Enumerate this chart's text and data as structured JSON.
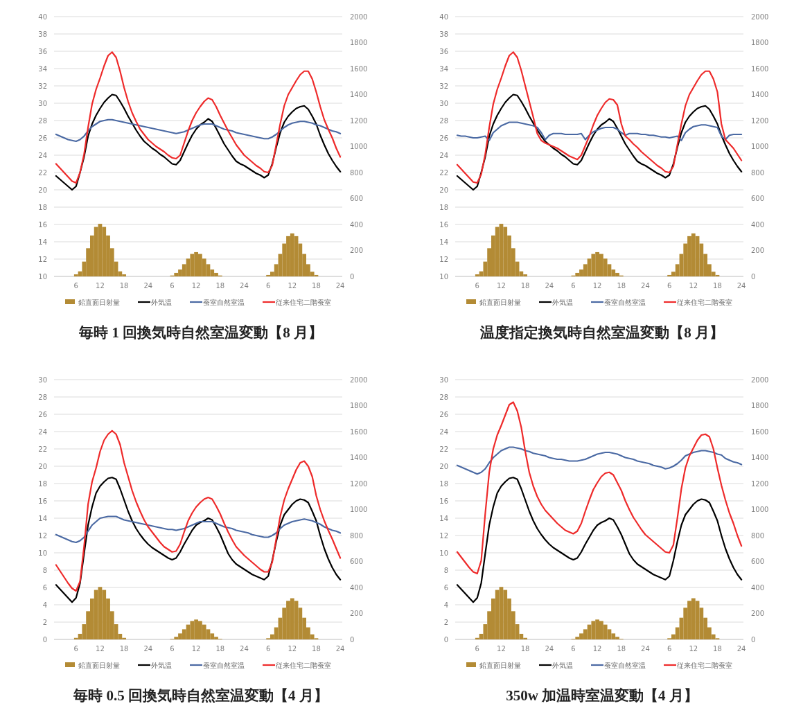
{
  "chart_data": [
    {
      "type": "line",
      "title": "毎時 1 回換気時自然室温変動【8 月】",
      "categories": [
        null,
        null,
        null,
        null,
        null,
        "6",
        null,
        null,
        null,
        null,
        null,
        "12",
        null,
        null,
        null,
        null,
        null,
        "18",
        null,
        null,
        null,
        null,
        null,
        "24",
        null,
        null,
        null,
        null,
        null,
        "6",
        null,
        null,
        null,
        null,
        null,
        "12",
        null,
        null,
        null,
        null,
        null,
        "18",
        null,
        null,
        null,
        null,
        null,
        "24",
        null,
        null,
        null,
        null,
        null,
        "6",
        null,
        null,
        null,
        null,
        null,
        "12",
        null,
        null,
        null,
        null,
        null,
        "18",
        null,
        null,
        null,
        null,
        null,
        "24"
      ],
      "ylim": [
        10,
        40
      ],
      "yticks": [
        10,
        12,
        14,
        16,
        18,
        20,
        22,
        24,
        26,
        28,
        30,
        32,
        34,
        36,
        38,
        40
      ],
      "y2lim": [
        0,
        2000
      ],
      "y2ticks": [
        0,
        200,
        400,
        600,
        800,
        1000,
        1200,
        1400,
        1600,
        1800,
        2000
      ],
      "grid": "y",
      "legend": "bottom",
      "series": [
        {
          "name": "鉛直面日射量",
          "type": "bar",
          "axis": "y2",
          "color": "#b38b35",
          "values": [
            null,
            null,
            null,
            null,
            null,
            16,
            39,
            114,
            217,
            315,
            381,
            405,
            381,
            315,
            217,
            114,
            39,
            16,
            null,
            null,
            null,
            null,
            null,
            null,
            null,
            null,
            null,
            null,
            null,
            7,
            27,
            53,
            94,
            137,
            173,
            187,
            173,
            137,
            94,
            53,
            27,
            7,
            null,
            null,
            null,
            null,
            null,
            null,
            null,
            null,
            null,
            null,
            null,
            11,
            36,
            94,
            173,
            253,
            310,
            331,
            310,
            253,
            173,
            94,
            36,
            11,
            null,
            null,
            null,
            null,
            null,
            null
          ]
        },
        {
          "name": "外気温",
          "color": "#000000",
          "values": [
            21.6,
            21.2,
            20.8,
            20.4,
            20.0,
            20.4,
            22.0,
            23.8,
            26.2,
            27.6,
            28.6,
            29.4,
            30.1,
            30.6,
            31.0,
            30.9,
            30.2,
            29.4,
            28.5,
            27.7,
            26.9,
            26.2,
            25.6,
            25.2,
            24.8,
            24.5,
            24.1,
            23.8,
            23.4,
            23.0,
            22.9,
            23.4,
            24.4,
            25.4,
            26.3,
            27.0,
            27.5,
            27.8,
            28.2,
            27.9,
            27.1,
            26.2,
            25.3,
            24.6,
            23.9,
            23.3,
            23.0,
            22.8,
            22.5,
            22.2,
            21.9,
            21.7,
            21.4,
            21.7,
            23.0,
            24.9,
            26.6,
            27.8,
            28.5,
            29.0,
            29.4,
            29.6,
            29.7,
            29.3,
            28.5,
            27.6,
            26.3,
            25.2,
            24.2,
            23.4,
            22.7,
            22.1
          ]
        },
        {
          "name": "蚕室自然室温",
          "color": "#4a69a3",
          "values": [
            26.4,
            26.2,
            26.0,
            25.8,
            25.7,
            25.6,
            25.8,
            26.2,
            26.8,
            27.3,
            27.6,
            27.9,
            28.0,
            28.1,
            28.1,
            28.0,
            27.9,
            27.8,
            27.7,
            27.6,
            27.5,
            27.4,
            27.3,
            27.2,
            27.1,
            27.0,
            26.9,
            26.8,
            26.7,
            26.6,
            26.5,
            26.6,
            26.7,
            26.9,
            27.1,
            27.3,
            27.5,
            27.6,
            27.6,
            27.6,
            27.4,
            27.2,
            27.0,
            26.9,
            26.8,
            26.6,
            26.5,
            26.4,
            26.3,
            26.2,
            26.1,
            26.0,
            25.9,
            25.9,
            26.1,
            26.4,
            26.8,
            27.2,
            27.5,
            27.7,
            27.8,
            27.9,
            27.9,
            27.8,
            27.7,
            27.5,
            27.4,
            27.2,
            27.0,
            26.8,
            26.7,
            26.5
          ]
        },
        {
          "name": "従来住宅二階蚕室",
          "color": "#ee2a2a",
          "values": [
            23.0,
            22.5,
            22.0,
            21.5,
            21.0,
            20.8,
            22.0,
            24.1,
            27.2,
            29.9,
            31.6,
            32.9,
            34.3,
            35.5,
            35.9,
            35.3,
            33.7,
            31.8,
            30.2,
            28.9,
            27.9,
            27.0,
            26.4,
            25.8,
            25.4,
            25.0,
            24.7,
            24.4,
            24.0,
            23.7,
            23.6,
            24.0,
            25.4,
            26.8,
            28.0,
            28.9,
            29.6,
            30.2,
            30.6,
            30.4,
            29.6,
            28.6,
            27.7,
            26.8,
            26.0,
            25.2,
            24.6,
            24.0,
            23.6,
            23.2,
            22.8,
            22.5,
            22.1,
            22.0,
            22.8,
            25.2,
            27.6,
            29.7,
            31.0,
            31.8,
            32.6,
            33.3,
            33.7,
            33.7,
            32.8,
            31.3,
            29.6,
            28.1,
            27.0,
            26.0,
            24.8,
            23.8
          ]
        }
      ]
    },
    {
      "type": "line",
      "title": "温度指定換気時自然室温変動【8 月】",
      "categories": [
        null,
        null,
        null,
        null,
        null,
        "6",
        null,
        null,
        null,
        null,
        null,
        "12",
        null,
        null,
        null,
        null,
        null,
        "18",
        null,
        null,
        null,
        null,
        null,
        "24",
        null,
        null,
        null,
        null,
        null,
        "6",
        null,
        null,
        null,
        null,
        null,
        "12",
        null,
        null,
        null,
        null,
        null,
        "18",
        null,
        null,
        null,
        null,
        null,
        "24",
        null,
        null,
        null,
        null,
        null,
        "6",
        null,
        null,
        null,
        null,
        null,
        "12",
        null,
        null,
        null,
        null,
        null,
        "18",
        null,
        null,
        null,
        null,
        null,
        "24"
      ],
      "ylim": [
        10,
        40
      ],
      "yticks": [
        10,
        12,
        14,
        16,
        18,
        20,
        22,
        24,
        26,
        28,
        30,
        32,
        34,
        36,
        38,
        40
      ],
      "y2lim": [
        0,
        2000
      ],
      "y2ticks": [
        0,
        200,
        400,
        600,
        800,
        1000,
        1200,
        1400,
        1600,
        1800,
        2000
      ],
      "grid": "y",
      "legend": "bottom",
      "series": [
        {
          "name": "鉛直面日射量",
          "type": "bar",
          "axis": "y2",
          "color": "#b38b35",
          "values": [
            null,
            null,
            null,
            null,
            null,
            16,
            39,
            114,
            217,
            315,
            381,
            405,
            381,
            315,
            217,
            114,
            39,
            16,
            null,
            null,
            null,
            null,
            null,
            null,
            null,
            null,
            null,
            null,
            null,
            7,
            27,
            53,
            94,
            137,
            173,
            187,
            173,
            137,
            94,
            53,
            27,
            7,
            null,
            null,
            null,
            null,
            null,
            null,
            null,
            null,
            null,
            null,
            null,
            11,
            36,
            94,
            173,
            253,
            310,
            331,
            310,
            253,
            173,
            94,
            36,
            11,
            null,
            null,
            null,
            null,
            null,
            null
          ]
        },
        {
          "name": "外気温",
          "color": "#000000",
          "values": [
            21.6,
            21.2,
            20.8,
            20.4,
            20.0,
            20.4,
            22.0,
            23.8,
            26.2,
            27.6,
            28.6,
            29.4,
            30.1,
            30.6,
            31.0,
            30.9,
            30.2,
            29.4,
            28.5,
            27.7,
            26.9,
            26.2,
            25.6,
            25.2,
            24.8,
            24.5,
            24.1,
            23.8,
            23.4,
            23.0,
            22.9,
            23.4,
            24.4,
            25.4,
            26.3,
            27.0,
            27.5,
            27.8,
            28.2,
            27.9,
            27.1,
            26.2,
            25.3,
            24.6,
            23.9,
            23.3,
            23.0,
            22.8,
            22.5,
            22.2,
            21.9,
            21.7,
            21.4,
            21.7,
            23.0,
            24.9,
            26.6,
            27.8,
            28.5,
            29.0,
            29.4,
            29.6,
            29.7,
            29.3,
            28.5,
            27.6,
            26.3,
            25.2,
            24.2,
            23.4,
            22.7,
            22.1
          ]
        },
        {
          "name": "蚕室自然室温",
          "color": "#4a69a3",
          "values": [
            26.3,
            26.2,
            26.2,
            26.1,
            26.0,
            26.0,
            26.1,
            26.2,
            25.7,
            26.6,
            27.0,
            27.4,
            27.6,
            27.8,
            27.8,
            27.8,
            27.7,
            27.6,
            27.5,
            27.4,
            27.2,
            26.6,
            25.8,
            26.3,
            26.5,
            26.5,
            26.5,
            26.4,
            26.4,
            26.4,
            26.4,
            26.5,
            25.8,
            26.3,
            26.7,
            26.9,
            27.1,
            27.2,
            27.2,
            27.2,
            27.0,
            26.6,
            26.3,
            26.5,
            26.5,
            26.5,
            26.4,
            26.4,
            26.3,
            26.3,
            26.2,
            26.1,
            26.1,
            26.0,
            26.1,
            26.2,
            25.7,
            26.6,
            27.0,
            27.3,
            27.4,
            27.5,
            27.5,
            27.4,
            27.3,
            27.2,
            26.2,
            25.8,
            26.3,
            26.4,
            26.4,
            26.4
          ]
        },
        {
          "name": "従来住宅二階蚕室",
          "color": "#ee2a2a",
          "values": [
            22.9,
            22.4,
            21.9,
            21.4,
            20.9,
            20.8,
            21.8,
            24.1,
            27.2,
            29.9,
            31.6,
            32.9,
            34.3,
            35.5,
            35.9,
            35.3,
            33.8,
            32.0,
            30.2,
            28.4,
            26.5,
            25.7,
            25.4,
            25.2,
            25.0,
            24.8,
            24.5,
            24.2,
            23.9,
            23.7,
            23.5,
            24.0,
            25.1,
            26.2,
            27.5,
            28.6,
            29.4,
            30.1,
            30.5,
            30.4,
            29.8,
            27.6,
            26.2,
            25.8,
            25.3,
            24.9,
            24.4,
            24.0,
            23.6,
            23.2,
            22.8,
            22.5,
            22.1,
            22.0,
            22.7,
            25.2,
            27.6,
            29.7,
            31.0,
            31.8,
            32.6,
            33.3,
            33.7,
            33.7,
            32.8,
            31.3,
            27.6,
            25.8,
            25.3,
            24.8,
            24.1,
            23.4
          ]
        }
      ]
    },
    {
      "type": "line",
      "title": "毎時 0.5 回換気時自然室温変動【4 月】",
      "categories": [
        null,
        null,
        null,
        null,
        null,
        "6",
        null,
        null,
        null,
        null,
        null,
        "12",
        null,
        null,
        null,
        null,
        null,
        "18",
        null,
        null,
        null,
        null,
        null,
        "24",
        null,
        null,
        null,
        null,
        null,
        "6",
        null,
        null,
        null,
        null,
        null,
        "12",
        null,
        null,
        null,
        null,
        null,
        "18",
        null,
        null,
        null,
        null,
        null,
        "24",
        null,
        null,
        null,
        null,
        null,
        "6",
        null,
        null,
        null,
        null,
        null,
        "12",
        null,
        null,
        null,
        null,
        null,
        "18",
        null,
        null,
        null,
        null,
        null,
        "24"
      ],
      "ylim": [
        0,
        30
      ],
      "yticks": [
        0,
        2,
        4,
        6,
        8,
        10,
        12,
        14,
        16,
        18,
        20,
        22,
        24,
        26,
        28,
        30
      ],
      "y2lim": [
        0,
        2000
      ],
      "y2ticks": [
        0,
        200,
        400,
        600,
        800,
        1000,
        1200,
        1400,
        1600,
        1800,
        2000
      ],
      "grid": "y",
      "legend": "bottom",
      "series": [
        {
          "name": "鉛直面日射量",
          "type": "bar",
          "axis": "y2",
          "color": "#b38b35",
          "values": [
            null,
            null,
            null,
            null,
            null,
            12,
            43,
            117,
            217,
            315,
            381,
            404,
            381,
            315,
            217,
            117,
            43,
            12,
            null,
            null,
            null,
            null,
            null,
            null,
            null,
            null,
            null,
            null,
            null,
            4,
            20,
            46,
            78,
            114,
            142,
            153,
            142,
            114,
            78,
            46,
            20,
            4,
            null,
            null,
            null,
            null,
            null,
            null,
            null,
            null,
            null,
            null,
            null,
            9,
            39,
            93,
            167,
            244,
            297,
            317,
            297,
            244,
            167,
            93,
            39,
            9,
            null,
            null,
            null,
            null,
            null,
            null
          ]
        },
        {
          "name": "外気温",
          "color": "#000000",
          "values": [
            6.3,
            5.8,
            5.3,
            4.8,
            4.3,
            4.8,
            6.5,
            9.9,
            13.2,
            15.3,
            16.9,
            17.7,
            18.2,
            18.6,
            18.7,
            18.5,
            17.4,
            16.1,
            14.8,
            13.7,
            12.8,
            12.1,
            11.5,
            11.0,
            10.6,
            10.3,
            10.0,
            9.7,
            9.4,
            9.2,
            9.4,
            10.1,
            11.0,
            11.8,
            12.6,
            13.2,
            13.5,
            13.7,
            14.0,
            13.8,
            13.0,
            12.1,
            11.0,
            9.9,
            9.2,
            8.7,
            8.4,
            8.1,
            7.8,
            7.5,
            7.3,
            7.1,
            6.9,
            7.3,
            9.1,
            11.3,
            13.2,
            14.4,
            15.0,
            15.6,
            16.0,
            16.2,
            16.1,
            15.8,
            14.8,
            13.7,
            12.0,
            10.5,
            9.3,
            8.3,
            7.5,
            6.9
          ]
        },
        {
          "name": "蚕室自然室温",
          "color": "#4a69a3",
          "values": [
            12.1,
            11.9,
            11.7,
            11.5,
            11.3,
            11.2,
            11.4,
            11.8,
            12.5,
            13.2,
            13.6,
            14.0,
            14.1,
            14.2,
            14.2,
            14.2,
            14.0,
            13.8,
            13.7,
            13.6,
            13.5,
            13.4,
            13.3,
            13.2,
            13.1,
            13.0,
            12.9,
            12.8,
            12.7,
            12.7,
            12.6,
            12.7,
            12.8,
            13.0,
            13.2,
            13.4,
            13.6,
            13.6,
            13.6,
            13.6,
            13.4,
            13.2,
            13.0,
            12.9,
            12.8,
            12.6,
            12.5,
            12.4,
            12.3,
            12.1,
            12.0,
            11.9,
            11.8,
            11.8,
            12.0,
            12.3,
            12.8,
            13.2,
            13.4,
            13.6,
            13.7,
            13.8,
            13.9,
            13.8,
            13.7,
            13.5,
            13.3,
            13.0,
            12.8,
            12.6,
            12.5,
            12.3
          ]
        },
        {
          "name": "従来住宅二階蚕室",
          "color": "#ee2a2a",
          "values": [
            8.6,
            7.9,
            7.2,
            6.5,
            5.9,
            5.6,
            6.7,
            10.7,
            15.6,
            18.2,
            19.8,
            21.7,
            23.0,
            23.7,
            24.1,
            23.7,
            22.5,
            20.4,
            18.8,
            17.2,
            15.9,
            14.8,
            13.8,
            13.0,
            12.4,
            11.8,
            11.2,
            10.7,
            10.4,
            10.1,
            10.2,
            11.0,
            12.4,
            13.7,
            14.6,
            15.3,
            15.8,
            16.2,
            16.4,
            16.2,
            15.4,
            14.5,
            13.4,
            12.4,
            11.5,
            10.7,
            10.2,
            9.7,
            9.3,
            8.9,
            8.5,
            8.1,
            7.8,
            7.8,
            8.9,
            11.6,
            14.2,
            16.1,
            17.4,
            18.5,
            19.6,
            20.4,
            20.6,
            20.0,
            18.8,
            16.6,
            15.0,
            13.7,
            12.6,
            11.6,
            10.5,
            9.4
          ]
        }
      ]
    },
    {
      "type": "line",
      "title": "350w 加温時室温変動【4 月】",
      "categories": [
        null,
        null,
        null,
        null,
        null,
        "6",
        null,
        null,
        null,
        null,
        null,
        "12",
        null,
        null,
        null,
        null,
        null,
        "18",
        null,
        null,
        null,
        null,
        null,
        "24",
        null,
        null,
        null,
        null,
        null,
        "6",
        null,
        null,
        null,
        null,
        null,
        "12",
        null,
        null,
        null,
        null,
        null,
        "18",
        null,
        null,
        null,
        null,
        null,
        "24",
        null,
        null,
        null,
        null,
        null,
        "6",
        null,
        null,
        null,
        null,
        null,
        "12",
        null,
        null,
        null,
        null,
        null,
        "18",
        null,
        null,
        null,
        null,
        null,
        "24"
      ],
      "ylim": [
        0,
        30
      ],
      "yticks": [
        0,
        2,
        4,
        6,
        8,
        10,
        12,
        14,
        16,
        18,
        20,
        22,
        24,
        26,
        28,
        30
      ],
      "y2lim": [
        0,
        2000
      ],
      "y2ticks": [
        0,
        200,
        400,
        600,
        800,
        1000,
        1200,
        1400,
        1600,
        1800,
        2000
      ],
      "grid": "y",
      "legend": "bottom",
      "series": [
        {
          "name": "鉛直面日射量",
          "type": "bar",
          "axis": "y2",
          "color": "#b38b35",
          "values": [
            null,
            null,
            null,
            null,
            null,
            12,
            43,
            117,
            217,
            315,
            381,
            404,
            381,
            315,
            217,
            117,
            43,
            12,
            null,
            null,
            null,
            null,
            null,
            null,
            null,
            null,
            null,
            null,
            null,
            4,
            20,
            46,
            78,
            114,
            142,
            153,
            142,
            114,
            78,
            46,
            20,
            4,
            null,
            null,
            null,
            null,
            null,
            null,
            null,
            null,
            null,
            null,
            null,
            9,
            39,
            93,
            167,
            244,
            297,
            317,
            297,
            244,
            167,
            93,
            39,
            9,
            null,
            null,
            null,
            null,
            null,
            null
          ]
        },
        {
          "name": "外気温",
          "color": "#000000",
          "values": [
            6.3,
            5.8,
            5.3,
            4.8,
            4.3,
            4.8,
            6.5,
            9.9,
            13.2,
            15.3,
            16.9,
            17.7,
            18.2,
            18.6,
            18.7,
            18.5,
            17.4,
            16.1,
            14.8,
            13.7,
            12.8,
            12.1,
            11.5,
            11.0,
            10.6,
            10.3,
            10.0,
            9.7,
            9.4,
            9.2,
            9.4,
            10.1,
            11.0,
            11.8,
            12.6,
            13.2,
            13.5,
            13.7,
            14.0,
            13.8,
            13.0,
            12.1,
            11.0,
            9.9,
            9.2,
            8.7,
            8.4,
            8.1,
            7.8,
            7.5,
            7.3,
            7.1,
            6.9,
            7.3,
            9.1,
            11.3,
            13.2,
            14.4,
            15.0,
            15.6,
            16.0,
            16.2,
            16.1,
            15.8,
            14.8,
            13.7,
            12.0,
            10.5,
            9.3,
            8.3,
            7.5,
            6.9
          ]
        },
        {
          "name": "蚕室自然室温",
          "color": "#4a69a3",
          "values": [
            20.1,
            19.9,
            19.7,
            19.5,
            19.3,
            19.1,
            19.3,
            19.7,
            20.4,
            21.0,
            21.4,
            21.8,
            22.0,
            22.2,
            22.2,
            22.1,
            22.0,
            21.8,
            21.7,
            21.5,
            21.4,
            21.3,
            21.2,
            21.0,
            20.9,
            20.8,
            20.8,
            20.7,
            20.6,
            20.6,
            20.6,
            20.7,
            20.8,
            21.0,
            21.2,
            21.4,
            21.5,
            21.6,
            21.6,
            21.5,
            21.4,
            21.2,
            21.0,
            20.9,
            20.8,
            20.6,
            20.5,
            20.4,
            20.3,
            20.1,
            20.0,
            19.9,
            19.7,
            19.8,
            20.0,
            20.3,
            20.7,
            21.2,
            21.4,
            21.6,
            21.7,
            21.8,
            21.8,
            21.7,
            21.6,
            21.4,
            21.3,
            20.9,
            20.7,
            20.5,
            20.4,
            20.2
          ]
        },
        {
          "name": "従来住宅二階蚕室",
          "color": "#ee2a2a",
          "values": [
            10.1,
            9.5,
            8.9,
            8.3,
            7.8,
            7.6,
            9.1,
            14.5,
            19.3,
            22.0,
            23.6,
            24.7,
            25.9,
            27.1,
            27.4,
            26.4,
            24.5,
            21.7,
            19.3,
            17.7,
            16.5,
            15.6,
            14.9,
            14.4,
            13.9,
            13.4,
            13.0,
            12.6,
            12.4,
            12.2,
            12.5,
            13.4,
            14.8,
            16.1,
            17.3,
            18.1,
            18.8,
            19.2,
            19.3,
            19.0,
            18.1,
            17.2,
            16.0,
            15.0,
            14.1,
            13.4,
            12.7,
            12.1,
            11.7,
            11.3,
            10.9,
            10.5,
            10.1,
            10.0,
            10.9,
            14.0,
            17.4,
            19.8,
            21.2,
            22.1,
            23.0,
            23.6,
            23.7,
            23.4,
            22.0,
            19.8,
            17.8,
            16.1,
            14.6,
            13.4,
            12.0,
            10.8
          ]
        }
      ]
    }
  ]
}
